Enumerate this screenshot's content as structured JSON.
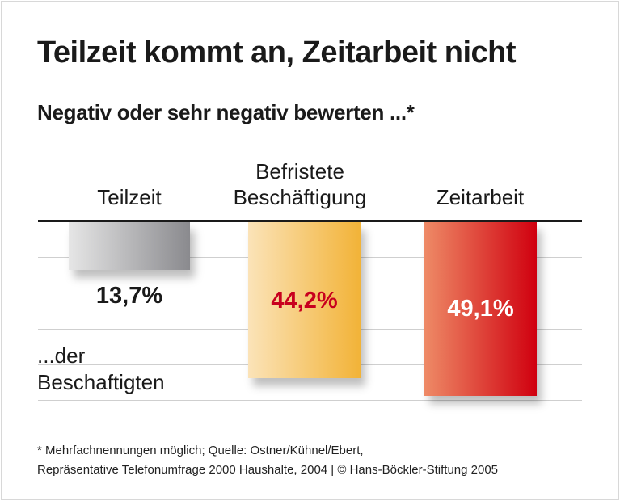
{
  "chart_data": {
    "type": "bar",
    "title": "Teilzeit kommt an, Zeitarbeit nicht",
    "subtitle": "Negativ oder sehr negativ bewerten ...*",
    "categories": [
      "Teilzeit",
      "Befristete Beschäftigung",
      "Zeitarbeit"
    ],
    "values": [
      13.7,
      44.2,
      49.1
    ],
    "value_labels": [
      "13,7%",
      "44,2%",
      "49,1%"
    ],
    "unit": "%",
    "ylim": [
      0,
      50
    ],
    "grid": true,
    "orientation": "bars hanging down from top axis",
    "annotation": "...der Beschaftigten",
    "colors": {
      "bars": [
        [
          "#e6e6e6",
          "#8a8a8e"
        ],
        [
          "#fbe3b8",
          "#f2b338"
        ],
        [
          "#ee8a66",
          "#d0000f"
        ]
      ],
      "labels": [
        "#1a1a1a",
        "#c8001e",
        "#ffffff"
      ]
    }
  },
  "footnote": {
    "line1": "* Mehrfachnennungen möglich; Quelle: Ostner/Kühnel/Ebert,",
    "line2": "Repräsentative Telefonumfrage 2000 Haushalte, 2004 | © Hans-Böckler-Stiftung 2005"
  }
}
